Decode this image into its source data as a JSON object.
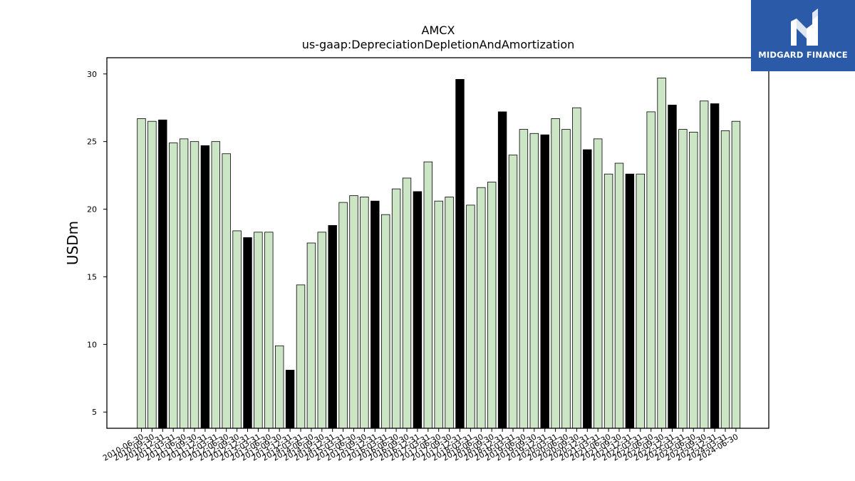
{
  "brand": {
    "name": "MIDGARD FINANCE",
    "background_color": "#2b5ba8",
    "icon": "midgard-logo-icon"
  },
  "chart_data": {
    "type": "bar",
    "title": "AMCX",
    "subtitle": "us-gaap:DepreciationDepletionAndAmortization",
    "ylabel": "USDm",
    "xlabel": "",
    "ylim": [
      3.8,
      31.2
    ],
    "yticks": [
      5,
      10,
      15,
      20,
      25,
      30
    ],
    "grid": false,
    "legend": "none",
    "colors": {
      "quarterly": "#cce6c5",
      "fiscal_year_end": "#000000",
      "edge": "#000000"
    },
    "categories": [
      "2010-06-30",
      "2010-09-30",
      "2010-12-31",
      "2011-03-31",
      "2011-06-30",
      "2011-09-30",
      "2011-12-31",
      "2012-03-31",
      "2012-06-30",
      "2012-09-30",
      "2012-12-31",
      "2013-03-31",
      "2013-06-30",
      "2013-09-30",
      "2013-12-31",
      "2014-03-31",
      "2014-06-30",
      "2014-09-30",
      "2014-12-31",
      "2015-03-31",
      "2015-06-30",
      "2015-09-30",
      "2015-12-31",
      "2016-03-31",
      "2016-06-30",
      "2016-09-30",
      "2016-12-31",
      "2017-03-31",
      "2017-06-30",
      "2017-09-30",
      "2017-12-31",
      "2018-03-31",
      "2018-06-30",
      "2018-09-30",
      "2018-12-31",
      "2019-03-31",
      "2019-06-30",
      "2019-09-30",
      "2019-12-31",
      "2020-03-31",
      "2020-06-30",
      "2020-09-30",
      "2020-12-31",
      "2021-03-31",
      "2021-06-30",
      "2021-09-30",
      "2021-12-31",
      "2022-03-31",
      "2022-06-30",
      "2022-09-30",
      "2022-12-31",
      "2023-03-31",
      "2023-06-30",
      "2023-09-30",
      "2023-12-31",
      "2024-03-31",
      "2024-06-30"
    ],
    "values": [
      26.7,
      26.5,
      26.6,
      24.9,
      25.2,
      25.0,
      24.7,
      25.0,
      24.1,
      18.4,
      17.9,
      18.3,
      18.3,
      9.9,
      8.1,
      14.4,
      17.5,
      18.3,
      18.8,
      20.5,
      21.0,
      20.9,
      20.6,
      19.6,
      21.5,
      22.3,
      21.3,
      23.5,
      20.6,
      20.9,
      29.6,
      20.3,
      21.6,
      22.0,
      27.2,
      24.0,
      25.9,
      25.6,
      25.5,
      26.7,
      25.9,
      27.5,
      24.4,
      25.2,
      22.6,
      23.4,
      22.6,
      22.6,
      27.2,
      29.7,
      27.7,
      25.9,
      25.7,
      28.0,
      27.8,
      25.8,
      26.5
    ],
    "fiscal_year_end": [
      false,
      false,
      true,
      false,
      false,
      false,
      true,
      false,
      false,
      false,
      true,
      false,
      false,
      false,
      true,
      false,
      false,
      false,
      true,
      false,
      false,
      false,
      true,
      false,
      false,
      false,
      true,
      false,
      false,
      false,
      true,
      false,
      false,
      false,
      true,
      false,
      false,
      false,
      true,
      false,
      false,
      false,
      true,
      false,
      false,
      false,
      true,
      false,
      false,
      false,
      true,
      false,
      false,
      false,
      true,
      false,
      false
    ]
  }
}
